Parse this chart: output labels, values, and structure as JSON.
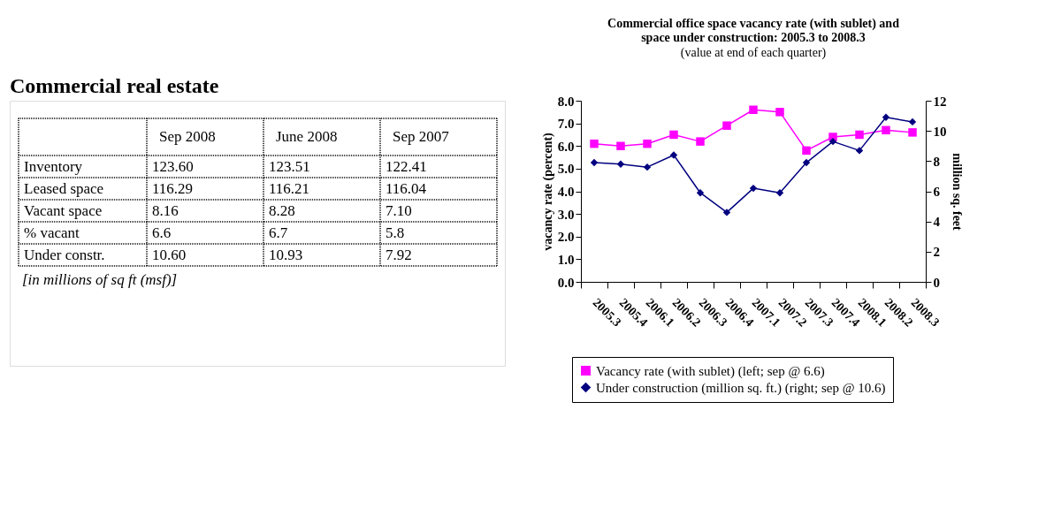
{
  "chart_data": [
    {
      "type": "other",
      "title": "Commercial real estate",
      "categories": [
        "Sep  2008",
        "June 2008",
        "Sep 2007"
      ],
      "y_categories": [
        "Inventory",
        "Leased space",
        "Vacant space",
        "% vacant",
        "Under constr."
      ],
      "cell_labels": [
        [
          "123.60",
          "123.51",
          "122.41"
        ],
        [
          "116.29",
          "116.21",
          "116.04"
        ],
        [
          "8.16",
          "8.28",
          "7.10"
        ],
        [
          "6.6",
          "6.7",
          "5.8"
        ],
        [
          "10.60",
          "10.93",
          "7.92"
        ]
      ],
      "annotations": [
        "[in millions of sq ft (msf)]"
      ]
    },
    {
      "type": "line",
      "title": "Commercial office space vacancy rate (with sublet) and space under construction: 2005.3 to 2008.3",
      "subtitle": "(value at end of each quarter)",
      "ylabel": "vacancy rate (percent)",
      "y2label": "million sq. feet",
      "categories": [
        "2005.3",
        "2005.4",
        "2006.1",
        "2006.2",
        "2006.3",
        "2006.4",
        "2007.1",
        "2007.2",
        "2007.3",
        "2007.4",
        "2008.1",
        "2008.2",
        "2008.3"
      ],
      "series": [
        {
          "name": "Vacancy rate (with sublet) (left; sep @ 6.6)",
          "color": "#ff00ff",
          "marker": "square",
          "values": [
            6.1,
            6.0,
            6.1,
            6.5,
            6.2,
            6.9,
            7.6,
            7.5,
            5.8,
            6.4,
            6.5,
            6.7,
            6.6
          ]
        },
        {
          "name": "Under construction (million sq. ft.) (right; sep @ 10.6)",
          "color": "#000080",
          "marker": "diamond",
          "axis": "y2",
          "values": [
            7.9,
            7.8,
            7.6,
            8.4,
            5.9,
            4.6,
            6.2,
            5.9,
            7.9,
            9.3,
            8.7,
            10.9,
            10.6
          ]
        }
      ],
      "ylim": [
        0,
        8
      ],
      "yticks": [
        {
          "value": 0,
          "label": "0.0"
        },
        {
          "value": 1,
          "label": "1.0"
        },
        {
          "value": 2,
          "label": "2.0"
        },
        {
          "value": 3,
          "label": "3.0"
        },
        {
          "value": 4,
          "label": "4.0"
        },
        {
          "value": 5,
          "label": "5.0"
        },
        {
          "value": 6,
          "label": "6.0"
        },
        {
          "value": 7,
          "label": "7.0"
        },
        {
          "value": 8,
          "label": "8.0"
        }
      ],
      "y2lim": [
        0,
        12
      ],
      "y2ticks": [
        0,
        2,
        4,
        6,
        8,
        10,
        12
      ],
      "grid": false,
      "legend": "bottom",
      "line_style": "solid"
    }
  ]
}
